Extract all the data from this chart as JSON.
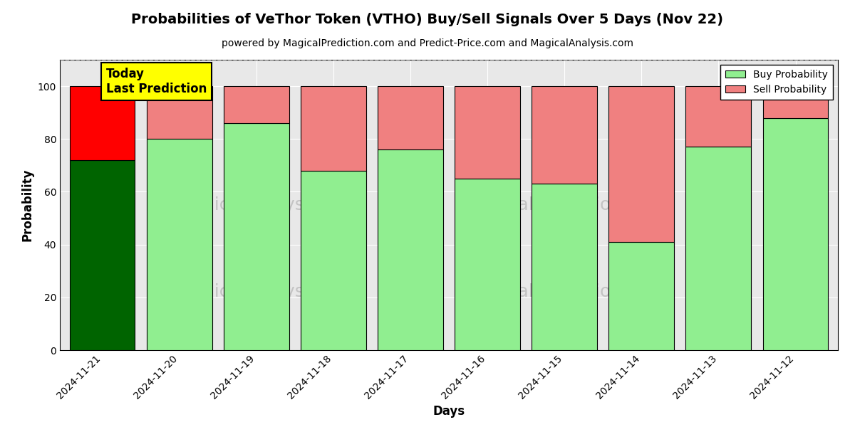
{
  "title": "Probabilities of VeThor Token (VTHO) Buy/Sell Signals Over 5 Days (Nov 22)",
  "subtitle": "powered by MagicalPrediction.com and Predict-Price.com and MagicalAnalysis.com",
  "xlabel": "Days",
  "ylabel": "Probability",
  "dates": [
    "2024-11-21",
    "2024-11-20",
    "2024-11-19",
    "2024-11-18",
    "2024-11-17",
    "2024-11-16",
    "2024-11-15",
    "2024-11-14",
    "2024-11-13",
    "2024-11-12"
  ],
  "buy_values": [
    72,
    80,
    86,
    68,
    76,
    65,
    63,
    41,
    77,
    88
  ],
  "sell_values": [
    28,
    20,
    14,
    32,
    24,
    35,
    37,
    59,
    23,
    12
  ],
  "today_buy_color": "#006400",
  "today_sell_color": "#ff0000",
  "other_buy_color": "#90ee90",
  "other_sell_color": "#f08080",
  "today_label_bg": "#ffff00",
  "today_label_text": "Today\nLast Prediction",
  "legend_buy_label": "Buy Probability",
  "legend_sell_label": "Sell Probability",
  "ylim": [
    0,
    110
  ],
  "yticks": [
    0,
    20,
    40,
    60,
    80,
    100
  ],
  "dashed_line_y": 110,
  "background_color": "#ffffff",
  "plot_bg_color": "#e8e8e8",
  "bar_edge_color": "#000000",
  "bar_width": 0.85
}
